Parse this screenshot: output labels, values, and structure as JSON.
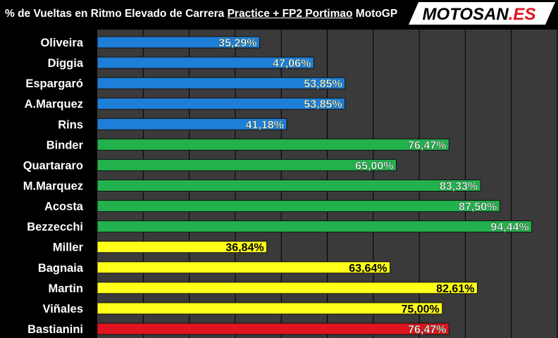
{
  "header": {
    "title_prefix": "% de Vueltas en Ritmo Elevado de Carrera ",
    "title_session": "Practice + FP2  Portimao",
    "title_suffix": " MotoGP",
    "logo_main": "MOTOSAN",
    "logo_ext": ".ES"
  },
  "chart_data": {
    "type": "bar",
    "orientation": "horizontal",
    "title": "% de Vueltas en Ritmo Elevado de Carrera Practice + FP2  Portimao MotoGP",
    "xlim": [
      0,
      100
    ],
    "grid": true,
    "legend": "none",
    "categories": [
      "Oliveira",
      "Diggia",
      "Espargaró",
      "A.Marquez",
      "Rins",
      "Binder",
      "Quartararo",
      "M.Marquez",
      "Acosta",
      "Bezzecchi",
      "Miller",
      "Bagnaia",
      "Martin",
      "Viñales",
      "Bastianini"
    ],
    "values": [
      35.29,
      47.06,
      53.85,
      53.85,
      41.18,
      76.47,
      65.0,
      83.33,
      87.5,
      94.44,
      36.84,
      63.64,
      82.61,
      75.0,
      76.47
    ],
    "labels": [
      "35,29%",
      "47,06%",
      "53,85%",
      "53,85%",
      "41,18%",
      "76,47%",
      "65,00%",
      "83,33%",
      "87,50%",
      "94,44%",
      "36,84%",
      "63,64%",
      "82,61%",
      "75,00%",
      "76,47%"
    ],
    "colors": [
      "#1e7fd8",
      "#1e7fd8",
      "#1e7fd8",
      "#1e7fd8",
      "#1e7fd8",
      "#22b14c",
      "#22b14c",
      "#22b14c",
      "#22b14c",
      "#22b14c",
      "#ffff1a",
      "#ffff1a",
      "#ffff1a",
      "#ffff1a",
      "#e0141e"
    ],
    "label_colors": [
      "#ffffff",
      "#ffffff",
      "#ffffff",
      "#ffffff",
      "#ffffff",
      "#ffffff",
      "#ffffff",
      "#ffffff",
      "#ffffff",
      "#ffffff",
      "#000000",
      "#000000",
      "#000000",
      "#000000",
      "#ffffff"
    ]
  },
  "theme": {
    "plot_bg": "#3a3a3a",
    "grid_color": "#000000",
    "category_label_color": "#ffffff",
    "logo_bg": "#ffffff",
    "logo_accent": "#e0141e"
  }
}
